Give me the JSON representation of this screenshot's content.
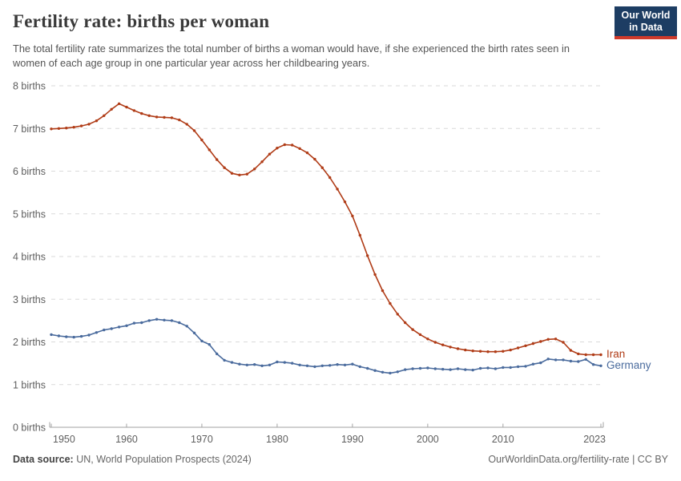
{
  "header": {
    "title": "Fertility rate: births per woman",
    "subtitle": "The total fertility rate summarizes the total number of births a woman would have, if she experienced the birth rates seen in women of each age group in one particular year across her childbearing years.",
    "logo": {
      "line1": "Our World",
      "line2": "in Data"
    }
  },
  "footer": {
    "source_label": "Data source:",
    "source_text": " UN, World Population Prospects (2024)",
    "attribution": "OurWorldinData.org/fertility-rate | CC BY"
  },
  "colors": {
    "iran": "#b03c17",
    "germany": "#4a6b9d",
    "gridline": "#dadada",
    "axis": "#a3a3a3",
    "tick_text": "#5e5e5e",
    "logo_navy": "#1d3d63",
    "logo_red": "#cf3a2b"
  },
  "chart_data": {
    "type": "line",
    "title": "Fertility rate: births per woman",
    "xlabel": "",
    "ylabel": "births",
    "xlim": [
      1950,
      2023
    ],
    "ylim": [
      0,
      8
    ],
    "grid": "horizontal-dashed",
    "legend_position": "end-of-line-labels",
    "years": [
      1950,
      1951,
      1952,
      1953,
      1954,
      1955,
      1956,
      1957,
      1958,
      1959,
      1960,
      1961,
      1962,
      1963,
      1964,
      1965,
      1966,
      1967,
      1968,
      1969,
      1970,
      1971,
      1972,
      1973,
      1974,
      1975,
      1976,
      1977,
      1978,
      1979,
      1980,
      1981,
      1982,
      1983,
      1984,
      1985,
      1986,
      1987,
      1988,
      1989,
      1990,
      1991,
      1992,
      1993,
      1994,
      1995,
      1996,
      1997,
      1998,
      1999,
      2000,
      2001,
      2002,
      2003,
      2004,
      2005,
      2006,
      2007,
      2008,
      2009,
      2010,
      2011,
      2012,
      2013,
      2014,
      2015,
      2016,
      2017,
      2018,
      2019,
      2020,
      2021,
      2022,
      2023
    ],
    "series": [
      {
        "name": "Iran",
        "color": "#b03c17",
        "values": [
          6.99,
          7.0,
          7.01,
          7.03,
          7.06,
          7.1,
          7.18,
          7.3,
          7.45,
          7.58,
          7.5,
          7.42,
          7.35,
          7.3,
          7.27,
          7.26,
          7.25,
          7.2,
          7.1,
          6.95,
          6.73,
          6.5,
          6.27,
          6.08,
          5.95,
          5.91,
          5.93,
          6.05,
          6.22,
          6.4,
          6.54,
          6.62,
          6.61,
          6.53,
          6.43,
          6.28,
          6.08,
          5.85,
          5.58,
          5.28,
          4.95,
          4.5,
          4.02,
          3.58,
          3.2,
          2.9,
          2.65,
          2.45,
          2.29,
          2.17,
          2.07,
          1.99,
          1.93,
          1.88,
          1.84,
          1.81,
          1.79,
          1.78,
          1.77,
          1.77,
          1.78,
          1.81,
          1.86,
          1.91,
          1.96,
          2.01,
          2.06,
          2.07,
          1.99,
          1.8,
          1.72,
          1.7,
          1.7,
          1.7
        ]
      },
      {
        "name": "Germany",
        "color": "#4a6b9d",
        "values": [
          2.17,
          2.14,
          2.12,
          2.11,
          2.13,
          2.16,
          2.22,
          2.28,
          2.31,
          2.35,
          2.38,
          2.44,
          2.45,
          2.5,
          2.53,
          2.51,
          2.5,
          2.45,
          2.37,
          2.21,
          2.02,
          1.94,
          1.72,
          1.57,
          1.52,
          1.48,
          1.46,
          1.47,
          1.44,
          1.46,
          1.53,
          1.52,
          1.5,
          1.46,
          1.44,
          1.42,
          1.44,
          1.45,
          1.47,
          1.46,
          1.48,
          1.42,
          1.38,
          1.33,
          1.29,
          1.27,
          1.3,
          1.35,
          1.37,
          1.38,
          1.39,
          1.37,
          1.36,
          1.35,
          1.37,
          1.35,
          1.34,
          1.38,
          1.39,
          1.37,
          1.4,
          1.4,
          1.42,
          1.43,
          1.48,
          1.51,
          1.6,
          1.58,
          1.58,
          1.55,
          1.54,
          1.59,
          1.47,
          1.44
        ]
      }
    ],
    "y_ticks": [
      {
        "value": 0,
        "label": "0 births"
      },
      {
        "value": 1,
        "label": "1 births"
      },
      {
        "value": 2,
        "label": "2 births"
      },
      {
        "value": 3,
        "label": "3 births"
      },
      {
        "value": 4,
        "label": "4 births"
      },
      {
        "value": 5,
        "label": "5 births"
      },
      {
        "value": 6,
        "label": "6 births"
      },
      {
        "value": 7,
        "label": "7 births"
      },
      {
        "value": 8,
        "label": "8 births"
      }
    ],
    "x_ticks": [
      {
        "value": 1950,
        "label": "1950"
      },
      {
        "value": 1960,
        "label": "1960"
      },
      {
        "value": 1970,
        "label": "1970"
      },
      {
        "value": 1980,
        "label": "1980"
      },
      {
        "value": 1990,
        "label": "1990"
      },
      {
        "value": 2000,
        "label": "2000"
      },
      {
        "value": 2010,
        "label": "2010"
      },
      {
        "value": 2023,
        "label": "2023"
      }
    ]
  }
}
